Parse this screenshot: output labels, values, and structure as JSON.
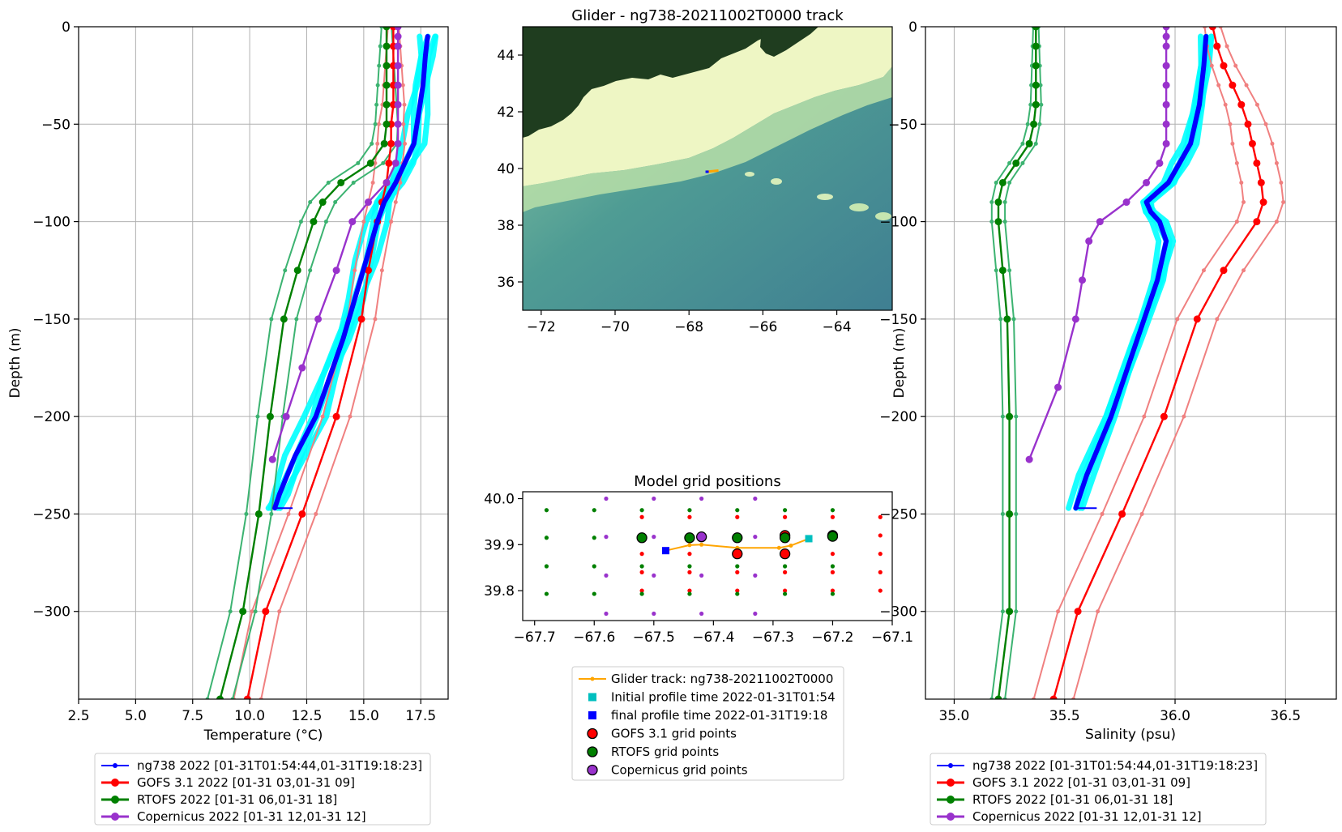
{
  "chart_data": [
    {
      "type": "line",
      "title": "",
      "xlabel": "Temperature (°C)",
      "ylabel": "Depth (m)",
      "xlim": [
        2.5,
        18.7
      ],
      "ylim": [
        -345,
        0
      ],
      "xticks": [
        "2.5",
        "5.0",
        "7.5",
        "10.0",
        "12.5",
        "15.0",
        "17.5"
      ],
      "yticks": [
        "0",
        "−50",
        "−100",
        "−150",
        "−200",
        "−250",
        "−300"
      ],
      "grid": true,
      "legend_placement": "below",
      "series": [
        {
          "name": "ng738 2022 [01-31T01:54:44,01-31T19:18:23]",
          "color": "#0000ff",
          "band_color": "#00ffff",
          "depth": [
            -5,
            -15,
            -30,
            -45,
            -60,
            -70,
            -80,
            -90,
            -100,
            -120,
            -140,
            -160,
            -180,
            -200,
            -220,
            -240,
            -247
          ],
          "values": [
            17.8,
            17.7,
            17.6,
            17.4,
            17.2,
            16.8,
            16.4,
            15.9,
            15.6,
            15.1,
            14.6,
            14.1,
            13.5,
            12.9,
            12.0,
            11.3,
            11.1
          ]
        },
        {
          "name": "GOFS 3.1 2022 [01-31 03,01-31 09]",
          "color": "#ff0000",
          "spread_color": "#f08080",
          "depth": [
            0,
            -10,
            -20,
            -30,
            -40,
            -50,
            -60,
            -70,
            -80,
            -90,
            -100,
            -125,
            -150,
            -200,
            -250,
            -300,
            -345
          ],
          "values": [
            16.3,
            16.3,
            16.3,
            16.3,
            16.3,
            16.2,
            16.2,
            16.1,
            16.0,
            15.8,
            15.6,
            15.2,
            14.9,
            13.8,
            12.3,
            10.7,
            9.9
          ]
        },
        {
          "name": "RTOFS 2022 [01-31 06,01-31 18]",
          "color": "#008000",
          "spread_color": "#3cb371",
          "depth": [
            0,
            -10,
            -20,
            -30,
            -40,
            -50,
            -60,
            -70,
            -80,
            -90,
            -100,
            -125,
            -150,
            -200,
            -250,
            -300,
            -345
          ],
          "values": [
            16.0,
            16.0,
            16.0,
            16.0,
            16.0,
            16.0,
            15.9,
            15.3,
            14.0,
            13.2,
            12.8,
            12.1,
            11.5,
            10.9,
            10.4,
            9.7,
            8.7
          ]
        },
        {
          "name": "Copernicus 2022 [01-31 12,01-31 12]",
          "color": "#9932cc",
          "depth": [
            0,
            -5,
            -10,
            -20,
            -30,
            -40,
            -50,
            -60,
            -70,
            -80,
            -90,
            -100,
            -125,
            -150,
            -175,
            -200,
            -222
          ],
          "values": [
            16.5,
            16.5,
            16.5,
            16.5,
            16.5,
            16.5,
            16.5,
            16.5,
            16.4,
            16.0,
            15.2,
            14.5,
            13.8,
            13.0,
            12.3,
            11.6,
            11.0
          ]
        }
      ]
    },
    {
      "type": "heatmap",
      "title": "Glider - ng738-20211002T0000 track",
      "xlim": [
        -72.5,
        -62.5
      ],
      "ylim": [
        35,
        45
      ],
      "xticks": [
        "−72",
        "−70",
        "−68",
        "−66",
        "−64"
      ],
      "yticks": [
        "36",
        "38",
        "40",
        "42",
        "44"
      ],
      "glider_position": {
        "lon": -67.4,
        "lat": 39.9
      }
    },
    {
      "type": "scatter",
      "title": "Model grid positions",
      "xlim": [
        -67.72,
        -67.1
      ],
      "ylim": [
        39.735,
        40.015
      ],
      "xticks": [
        "−67.7",
        "−67.6",
        "−67.5",
        "−67.4",
        "−67.3",
        "−67.2",
        "−67.1"
      ],
      "yticks": [
        "39.8",
        "39.9",
        "40.0"
      ],
      "legend_placement": "below",
      "legend": [
        {
          "label": "Glider track: ng738-20211002T0000",
          "marker": "line",
          "color": "#ffa500"
        },
        {
          "label": "Initial profile time 2022-01-31T01:54",
          "marker": "square",
          "color": "#00bfbf"
        },
        {
          "label": "final profile time 2022-01-31T19:18",
          "marker": "square",
          "color": "#0000ff"
        },
        {
          "label": "GOFS 3.1 grid points",
          "marker": "circle",
          "color": "#ff0000"
        },
        {
          "label": "RTOFS grid points",
          "marker": "circle",
          "color": "#008000"
        },
        {
          "label": "Copernicus grid points",
          "marker": "circle",
          "color": "#9932cc"
        }
      ],
      "track": {
        "lon": [
          -67.48,
          -67.44,
          -67.42,
          -67.36,
          -67.29,
          -67.27,
          -67.24
        ],
        "lat": [
          39.887,
          39.899,
          39.9,
          39.893,
          39.893,
          39.898,
          39.913
        ]
      },
      "initial": {
        "lon": -67.24,
        "lat": 39.913
      },
      "final": {
        "lon": -67.48,
        "lat": 39.887
      },
      "gofs_lon": [
        -67.52,
        -67.44,
        -67.36,
        -67.28,
        -67.2,
        -67.12
      ],
      "gofs_lat": [
        39.8,
        39.84,
        39.88,
        39.92,
        39.96
      ],
      "rtofs_lon": [
        -67.68,
        -67.6,
        -67.52,
        -67.44,
        -67.36,
        -67.28,
        -67.2
      ],
      "rtofs_lat": [
        39.793,
        39.853,
        39.915,
        39.975
      ],
      "cop_lon": [
        -67.58,
        -67.5,
        -67.42,
        -67.33
      ],
      "cop_lat": [
        39.75,
        39.833,
        39.917,
        40.0
      ],
      "gofs_near": [
        {
          "lon": -67.36,
          "lat": 39.88
        },
        {
          "lon": -67.28,
          "lat": 39.88
        },
        {
          "lon": -67.28,
          "lat": 39.92
        },
        {
          "lon": -67.2,
          "lat": 39.92
        }
      ],
      "rtofs_near": [
        {
          "lon": -67.52,
          "lat": 39.915
        },
        {
          "lon": -67.44,
          "lat": 39.915
        },
        {
          "lon": -67.36,
          "lat": 39.915
        },
        {
          "lon": -67.28,
          "lat": 39.915
        },
        {
          "lon": -67.2,
          "lat": 39.918
        }
      ],
      "cop_near": [
        {
          "lon": -67.42,
          "lat": 39.917
        }
      ]
    },
    {
      "type": "line",
      "title": "",
      "xlabel": "Salinity (psu)",
      "ylabel": "Depth (m)",
      "xlim": [
        34.87,
        36.73
      ],
      "ylim": [
        -345,
        0
      ],
      "xticks": [
        "35.0",
        "35.5",
        "36.0",
        "36.5"
      ],
      "yticks": [
        "0",
        "−50",
        "−100",
        "−150",
        "−200",
        "−250",
        "−300"
      ],
      "grid": true,
      "legend_placement": "below",
      "series": [
        {
          "name": "ng738 2022 [01-31T01:54:44,01-31T19:18:23]",
          "color": "#0000ff",
          "band_color": "#00ffff",
          "depth": [
            -5,
            -20,
            -40,
            -60,
            -70,
            -80,
            -90,
            -95,
            -100,
            -110,
            -130,
            -160,
            -200,
            -230,
            -247
          ],
          "values": [
            36.14,
            36.13,
            36.11,
            36.07,
            36.02,
            35.97,
            35.87,
            35.89,
            35.93,
            35.96,
            35.92,
            35.83,
            35.71,
            35.6,
            35.55
          ]
        },
        {
          "name": "GOFS 3.1 2022 [01-31 03,01-31 09]",
          "color": "#ff0000",
          "spread_color": "#f08080",
          "depth": [
            0,
            -10,
            -20,
            -30,
            -40,
            -50,
            -60,
            -70,
            -80,
            -90,
            -100,
            -125,
            -150,
            -200,
            -250,
            -300,
            -345
          ],
          "values": [
            36.17,
            36.19,
            36.22,
            36.26,
            36.3,
            36.33,
            36.35,
            36.37,
            36.39,
            36.4,
            36.37,
            36.22,
            36.1,
            35.95,
            35.76,
            35.56,
            35.45
          ]
        },
        {
          "name": "RTOFS 2022 [01-31 06,01-31 18]",
          "color": "#008000",
          "spread_color": "#3cb371",
          "depth": [
            0,
            -10,
            -20,
            -30,
            -40,
            -50,
            -60,
            -70,
            -80,
            -90,
            -100,
            -125,
            -150,
            -200,
            -250,
            -300,
            -345
          ],
          "values": [
            35.37,
            35.37,
            35.37,
            35.37,
            35.37,
            35.36,
            35.34,
            35.28,
            35.22,
            35.2,
            35.2,
            35.22,
            35.24,
            35.25,
            35.25,
            35.25,
            35.2
          ]
        },
        {
          "name": "Copernicus 2022 [01-31 12,01-31 12]",
          "color": "#9932cc",
          "depth": [
            0,
            -5,
            -10,
            -20,
            -30,
            -40,
            -50,
            -60,
            -70,
            -80,
            -90,
            -100,
            -110,
            -130,
            -150,
            -185,
            -222
          ],
          "values": [
            35.96,
            35.96,
            35.96,
            35.96,
            35.96,
            35.96,
            35.96,
            35.96,
            35.93,
            35.87,
            35.78,
            35.66,
            35.61,
            35.58,
            35.55,
            35.47,
            35.34
          ]
        }
      ]
    }
  ]
}
